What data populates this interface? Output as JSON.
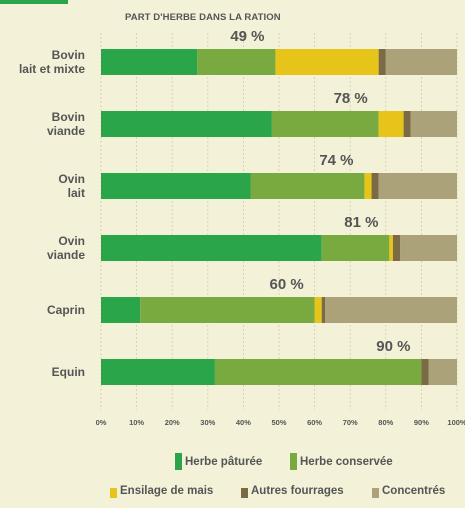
{
  "chart_data": {
    "type": "bar",
    "orientation": "horizontal",
    "stacked": true,
    "title": "PART D'HERBE DANS LA RATION",
    "categories": [
      [
        "Bovin",
        "lait et mixte"
      ],
      [
        "Bovin",
        "viande"
      ],
      [
        "Ovin",
        "lait"
      ],
      [
        "Ovin",
        "viande"
      ],
      [
        "Caprin"
      ],
      [
        "Equin"
      ]
    ],
    "herbe_share_labels": [
      "49 %",
      "78 %",
      "74 %",
      "81 %",
      "60 %",
      "90 %"
    ],
    "series": [
      {
        "name": "Herbe pâturée",
        "color": "#2aa54a",
        "values": [
          27,
          48,
          42,
          62,
          11,
          32
        ]
      },
      {
        "name": "Herbe conservée",
        "color": "#78aa40",
        "values": [
          22,
          30,
          32,
          19,
          49,
          58
        ]
      },
      {
        "name": "Ensilage de mais",
        "color": "#e6c419",
        "values": [
          29,
          7,
          2,
          1,
          2,
          0
        ]
      },
      {
        "name": "Autres fourrages",
        "color": "#7b6b45",
        "values": [
          2,
          2,
          2,
          2,
          1,
          2
        ]
      },
      {
        "name": "Concentrés",
        "color": "#aba27a",
        "values": [
          20,
          13,
          22,
          16,
          37,
          8
        ]
      }
    ],
    "xlim": [
      0,
      100
    ],
    "x_ticks": [
      "0%",
      "10%",
      "20%",
      "30%",
      "40%",
      "50%",
      "60%",
      "70%",
      "80%",
      "90%",
      "100%"
    ],
    "grid": "vertical dashed"
  },
  "legend_rows": [
    [
      "Herbe pâturée",
      "Herbe conservée"
    ],
    [
      "Ensilage de mais",
      "Autres fourrages",
      "Concentrés"
    ]
  ],
  "accent_color": "#2aa54a"
}
